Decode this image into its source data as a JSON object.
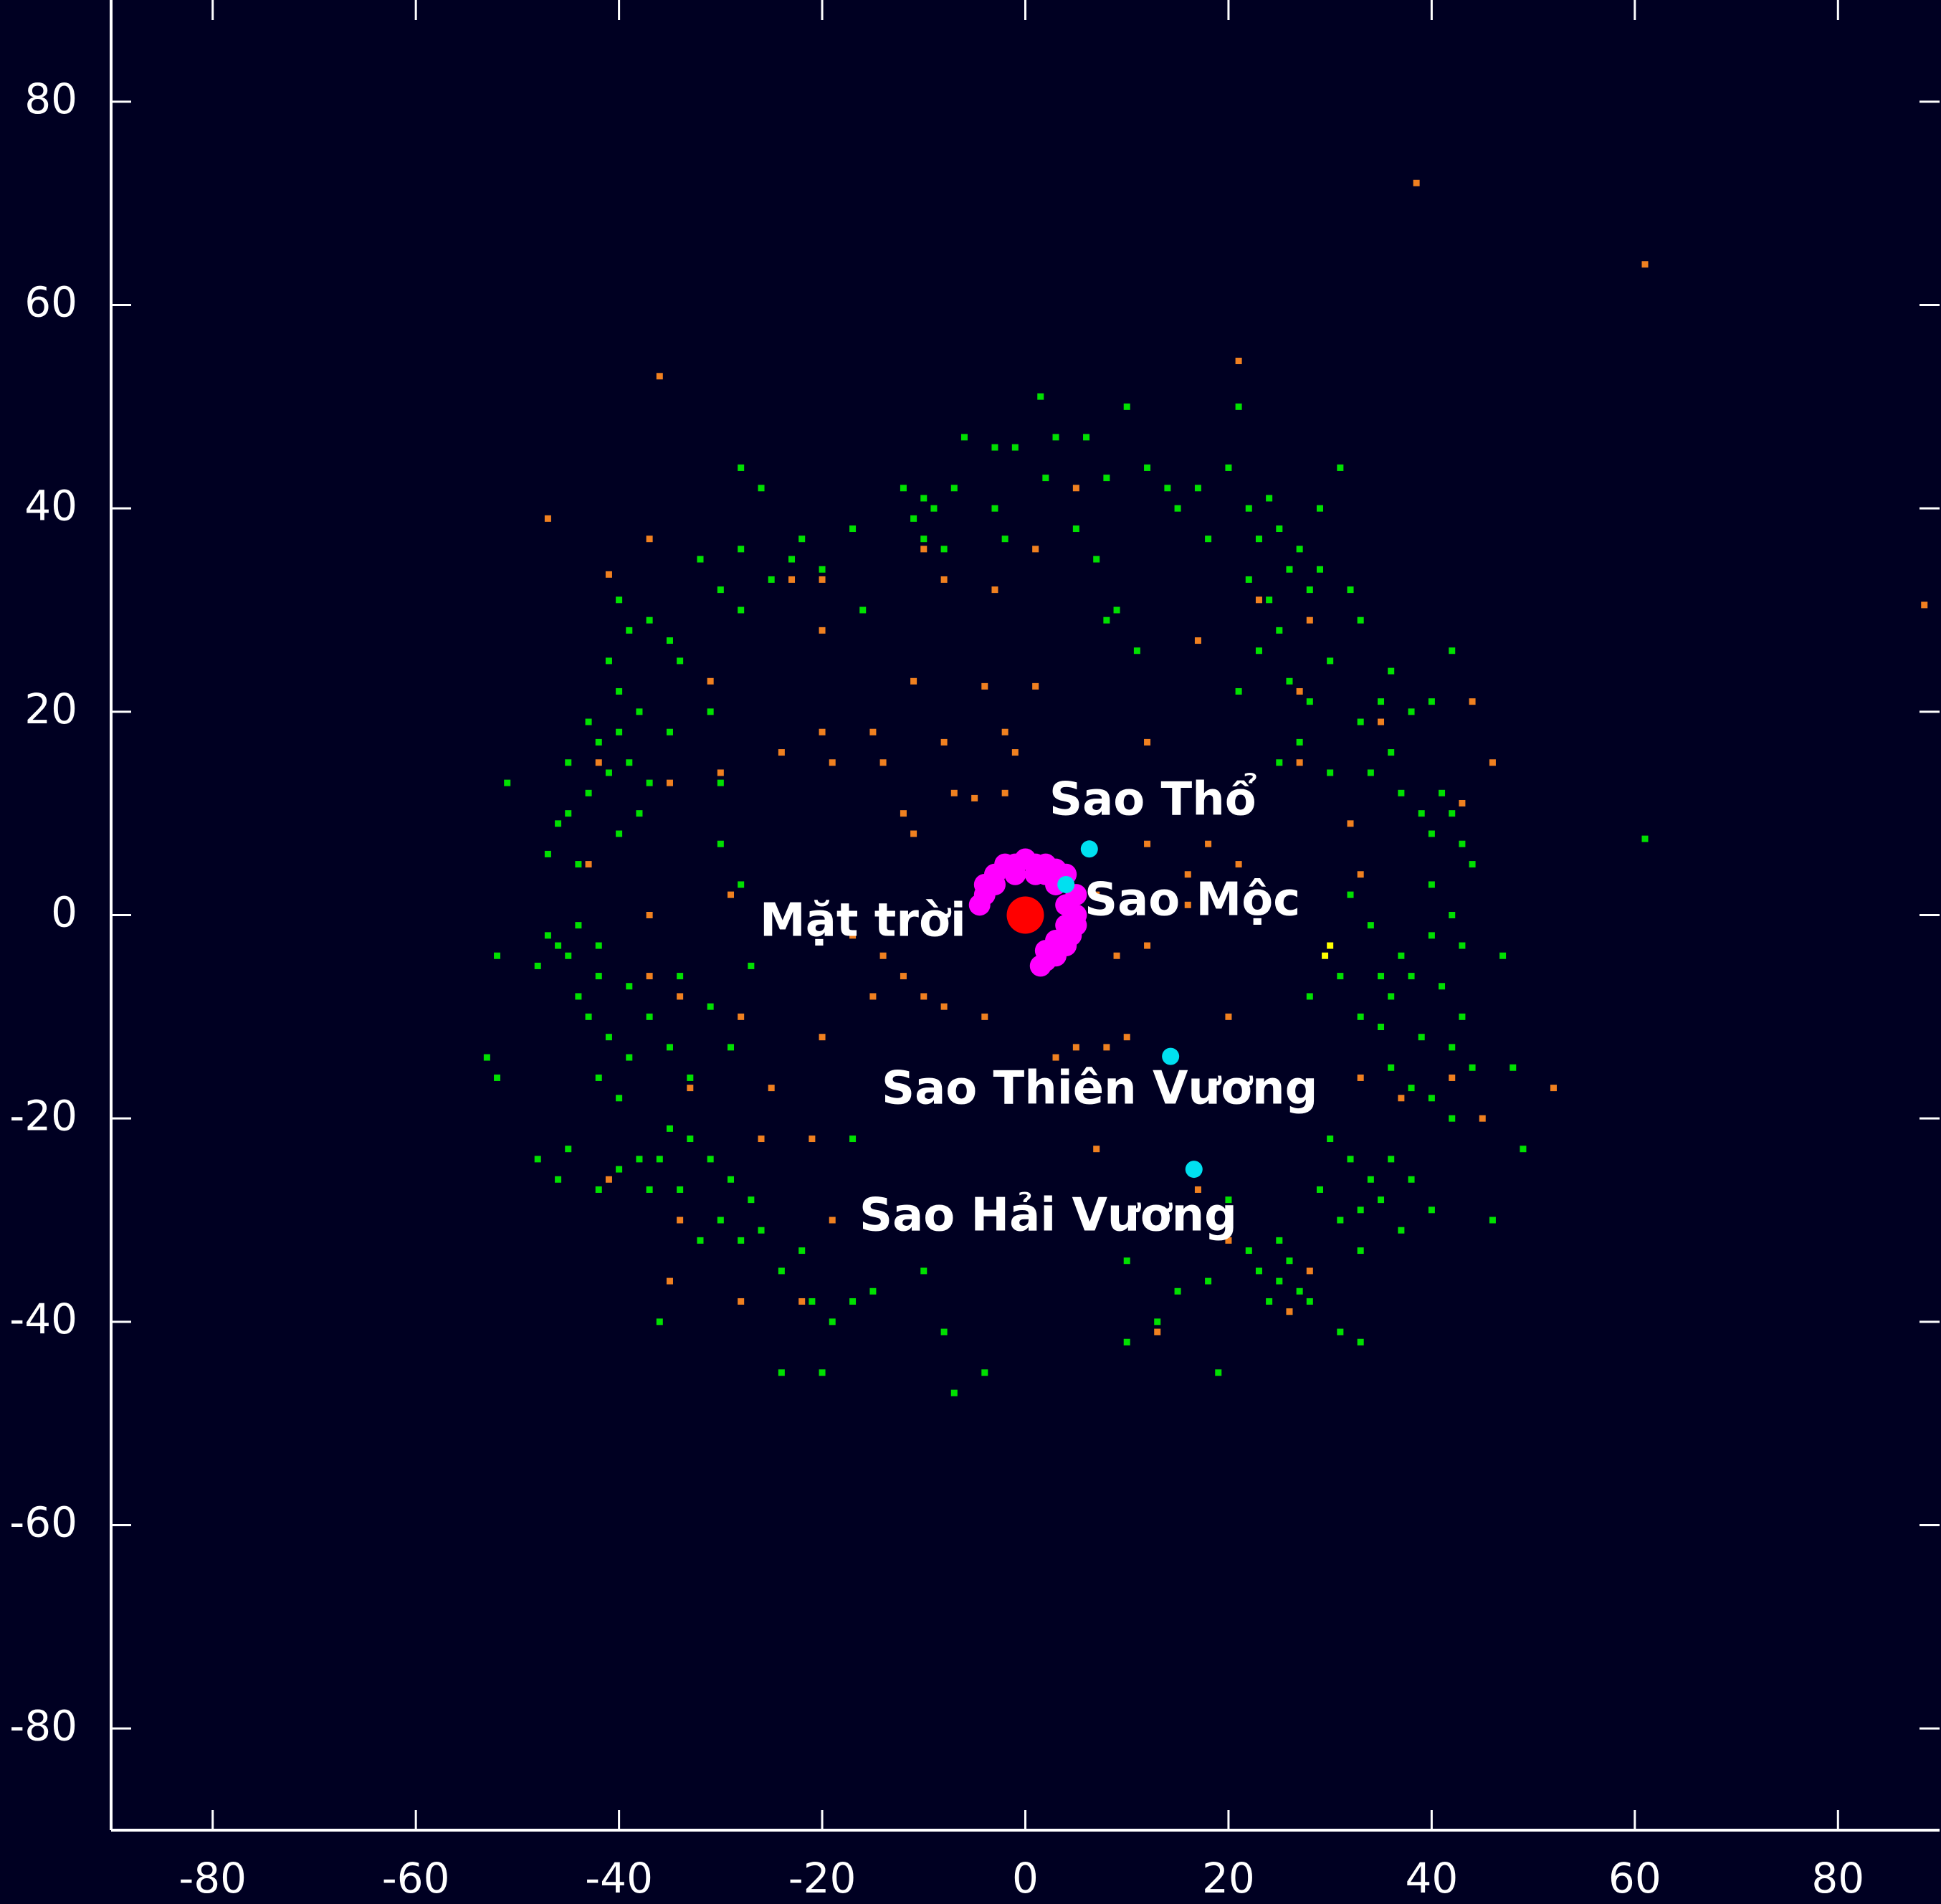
{
  "chart_data": {
    "type": "scatter",
    "xlim": [
      -90,
      90
    ],
    "ylim": [
      -90,
      90
    ],
    "xticks": [
      -80,
      -60,
      -40,
      -20,
      0,
      20,
      40,
      60,
      80
    ],
    "yticks": [
      -80,
      -60,
      -40,
      -20,
      0,
      20,
      40,
      60,
      80
    ],
    "series": [
      {
        "color": "#00e000",
        "x": [
          -10,
          -12,
          -9,
          -11,
          -7,
          -10,
          -8,
          -3,
          -6,
          -1,
          1.5,
          3,
          6,
          2,
          -2,
          -3,
          8,
          10,
          12,
          5,
          7,
          9,
          11,
          8,
          14,
          17,
          15,
          20,
          21,
          18,
          22,
          24,
          23,
          25,
          27,
          22,
          24,
          26,
          28,
          29,
          31,
          29,
          25,
          23,
          21,
          26,
          28,
          30,
          33,
          32,
          27,
          30,
          25,
          33,
          35,
          38,
          40,
          36,
          42,
          34,
          36,
          37,
          39,
          41,
          40,
          42,
          43,
          44,
          40,
          42,
          43,
          40,
          37,
          35,
          36,
          38,
          41,
          43,
          39,
          42,
          44,
          36,
          38,
          40,
          42,
          47,
          48,
          49,
          46,
          34,
          32,
          31,
          28,
          33,
          35,
          30,
          32,
          34,
          36,
          35,
          33,
          31,
          29,
          38,
          40,
          37,
          33,
          26,
          25,
          27,
          24,
          26,
          23,
          28,
          25,
          22,
          31,
          33,
          20,
          18,
          15,
          13,
          10,
          19,
          10,
          -8,
          -7,
          -4,
          -10,
          -15,
          -17,
          -19,
          -21,
          -20,
          -24,
          -22,
          -24,
          -26,
          -28,
          -27,
          -30,
          -32,
          -29,
          -31,
          -33,
          -35,
          -36,
          -34,
          -38,
          -37,
          -40,
          -42,
          -45,
          -48,
          -46,
          -36,
          -17,
          -40,
          -42,
          -39,
          -41,
          -43,
          -44,
          -42,
          -45,
          -47,
          -46,
          -48,
          -44,
          -42,
          -39,
          -37,
          -35,
          -33,
          -34,
          -31,
          -29,
          -52,
          -53,
          -52,
          -51,
          -45,
          -43,
          -41,
          -39,
          -42,
          -40,
          -38,
          -40,
          -43,
          -45,
          -46,
          -47,
          -44,
          -40,
          -38,
          -37,
          -35,
          -31,
          -30,
          -30,
          -28,
          -27,
          -41,
          -39,
          -40,
          -37,
          -35,
          -34,
          -32,
          -30,
          -28,
          -25,
          -23,
          -22,
          -20,
          -28,
          -16,
          -17,
          -26,
          -28,
          61
        ],
        "values": [
          41,
          42,
          40,
          39,
          42,
          37,
          36,
          46,
          47,
          46,
          51,
          47,
          47,
          43,
          37,
          40,
          43,
          50,
          44,
          38,
          35,
          30,
          26,
          29,
          42,
          42,
          40,
          44,
          50,
          37,
          40,
          41,
          37,
          38,
          36,
          33,
          31,
          34,
          32,
          40,
          44,
          34,
          28,
          26,
          22,
          23,
          21,
          25,
          29,
          32,
          17,
          14,
          15,
          19,
          21,
          20,
          21,
          24,
          26,
          14,
          16,
          12,
          10,
          12,
          8,
          10,
          7,
          5,
          3,
          0,
          -3,
          -2,
          -4,
          -6,
          -8,
          -6,
          -7,
          -10,
          -12,
          -13,
          -15,
          -15,
          -17,
          -18,
          -20,
          -4,
          -15,
          -23,
          -30,
          -1,
          2,
          -6,
          -8,
          -10,
          -11,
          -22,
          -24,
          -26,
          -24,
          -28,
          -29,
          -30,
          -27,
          -26,
          -29,
          -31,
          -33,
          -34,
          -36,
          -37,
          -38,
          -39,
          -35,
          -38,
          -32,
          -33,
          -41,
          -42,
          -28,
          -36,
          -37,
          -40,
          -42,
          -45,
          -34,
          -41,
          -47,
          -45,
          -35,
          -37,
          -38,
          -40,
          -38,
          -45,
          -45,
          -33,
          -35,
          -31,
          -32,
          -28,
          -30,
          -32,
          -26,
          -24,
          -22,
          -21,
          -24,
          -27,
          -24,
          -27,
          -25,
          -27,
          -23,
          -24,
          -26,
          -40,
          -22,
          -18,
          -16,
          -14,
          -12,
          -10,
          -8,
          -6,
          -4,
          -2,
          -3,
          -5,
          -1,
          -3,
          -7,
          -10,
          -13,
          -16,
          -6,
          -9,
          -13,
          -4,
          -14,
          -16,
          13,
          10,
          12,
          14,
          15,
          17,
          18,
          20,
          22,
          19,
          15,
          9,
          6,
          5,
          8,
          10,
          13,
          18,
          20,
          13,
          7,
          3,
          -5,
          25,
          28,
          31,
          29,
          27,
          25,
          35,
          32,
          30,
          33,
          35,
          37,
          34,
          36,
          30,
          38,
          42,
          44,
          7.5
        ]
      },
      {
        "color": "#f08020",
        "x": [
          38.5,
          61,
          88.5,
          21,
          -36,
          -47,
          -41,
          -37,
          -20,
          -23,
          -20,
          -10,
          -8,
          -3,
          1,
          5,
          -11,
          -4,
          1,
          -8,
          -2,
          -1,
          12,
          -20,
          -19,
          -15,
          -14,
          -12,
          -11,
          -7,
          -5,
          -2,
          -24,
          -30,
          -35,
          -31,
          -42,
          -43,
          -29,
          -37,
          -37,
          -34,
          -28,
          -25,
          -20,
          -15,
          -10,
          -8,
          -4,
          -17,
          -14,
          -12,
          -26,
          -21,
          -19,
          -22,
          -28,
          -35,
          -34,
          -41,
          -33,
          7,
          13,
          17,
          26,
          20,
          28,
          33,
          37,
          42,
          45,
          52,
          35,
          44,
          46,
          43,
          27,
          27,
          17,
          28,
          23,
          32,
          33,
          16,
          20,
          14,
          8,
          5,
          3,
          10,
          12,
          7,
          12,
          16,
          18,
          21,
          9
        ],
        "values": [
          72,
          64,
          30.5,
          54.5,
          53,
          39,
          33.5,
          37,
          33,
          33,
          28,
          36,
          33,
          32,
          36,
          42,
          23,
          22.5,
          22.5,
          17,
          18,
          16,
          17,
          18,
          15,
          18,
          15,
          10,
          8,
          12,
          11.5,
          12,
          16,
          14,
          13,
          23,
          15,
          5,
          2,
          0,
          -6,
          -8,
          -10,
          -17,
          -12,
          -8,
          -8,
          -9,
          -10,
          -2,
          -4,
          -6,
          -22,
          -22,
          -30,
          -38,
          -38,
          -36,
          -30,
          -26,
          -17,
          -23,
          -41,
          -27,
          -39,
          -32,
          -35,
          -16,
          -18,
          -16,
          -20,
          -17,
          19,
          21,
          15,
          11,
          22,
          15,
          27,
          29,
          31,
          9,
          4,
          1,
          -10,
          -14,
          -13,
          -13,
          -14,
          -12,
          -3,
          2,
          7,
          4,
          7,
          5,
          -4
        ]
      },
      {
        "color": "#ff00ff",
        "x": [
          -4,
          -3,
          -2,
          -1,
          0,
          1,
          2,
          3,
          4,
          5,
          5,
          5,
          4.5,
          4,
          3,
          2,
          1.5,
          -4,
          -4.5,
          -3,
          -1,
          1,
          2,
          3,
          4,
          4,
          3,
          2
        ],
        "values": [
          3,
          4,
          5,
          5,
          5.5,
          5,
          5,
          4.5,
          4,
          2,
          0,
          -1,
          -2,
          -3,
          -4,
          -4.5,
          -5,
          2,
          1,
          3,
          4,
          4,
          4,
          3,
          1,
          -1,
          -2.5,
          -3.5
        ]
      },
      {
        "color": "#ffff00",
        "x": [
          30,
          29.5
        ],
        "values": [
          -3,
          -4
        ]
      },
      {
        "name": "Mặt trời",
        "color": "#ff0000",
        "x": [
          0
        ],
        "values": [
          0
        ]
      },
      {
        "name": "Sao Mộc",
        "color": "#00e0f0",
        "x": [
          4
        ],
        "values": [
          3
        ]
      },
      {
        "name": "Sao Thổ",
        "color": "#00e0f0",
        "x": [
          6.3
        ],
        "values": [
          6.5
        ]
      },
      {
        "name": "Sao Thiên Vương",
        "color": "#00e0f0",
        "x": [
          14.3
        ],
        "values": [
          -13.9
        ]
      },
      {
        "name": "Sao Hải Vương",
        "color": "#00e0f0",
        "x": [
          16.6
        ],
        "values": [
          -25
        ]
      }
    ]
  }
}
